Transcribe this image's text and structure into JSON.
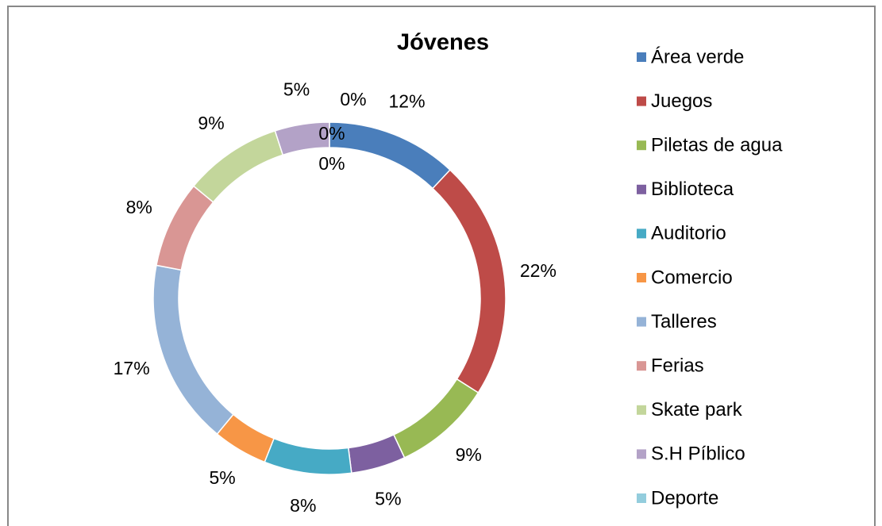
{
  "chart_data": {
    "type": "doughnut",
    "title": "Jóvenes",
    "categories": [
      "Área verde",
      "Juegos",
      "Piletas de agua",
      "Biblioteca",
      "Auditorio",
      "Comercio",
      "Talleres",
      "Ferias",
      "Skate park",
      "S.H  Píblico",
      "Deporte",
      null,
      null
    ],
    "values": [
      12,
      22,
      9,
      5,
      8,
      5,
      17,
      8,
      9,
      5,
      0,
      0,
      0
    ],
    "value_labels": [
      "12%",
      "22%",
      "9%",
      "5%",
      "8%",
      "5%",
      "17%",
      "8%",
      "9%",
      "5%",
      "0%",
      "0%",
      "0%"
    ],
    "colors": [
      "#4a7ebb",
      "#be4b48",
      "#98b954",
      "#7d60a0",
      "#46aac5",
      "#f79646",
      "#95b3d7",
      "#d99694",
      "#c3d69b",
      "#b3a2c7",
      "#93cddd",
      "#a5a5a5",
      "#8064a2"
    ],
    "legend": "right"
  }
}
